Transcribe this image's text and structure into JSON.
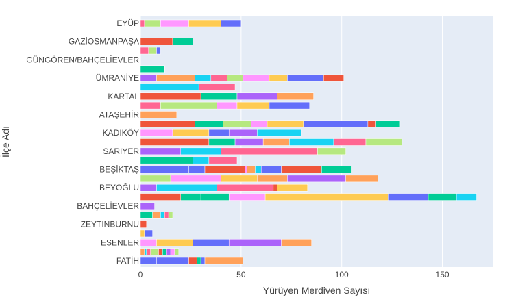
{
  "chart_data": {
    "type": "bar",
    "orientation": "horizontal",
    "barmode": "stack",
    "xlabel": "Yürüyen Merdiven Sayısı",
    "ylabel": "İlçe Adı",
    "xlim": [
      0,
      175
    ],
    "xticks": [
      0,
      50,
      100,
      150
    ],
    "grid": true,
    "background": "#E5ECF6",
    "y_tick_labels": [
      "EYÜP",
      "GAZİOSMANPAŞA",
      "GÜNGÖREN/BAHÇELİEVLER",
      "ÜMRANİYE",
      "KARTAL",
      "ATAŞEHİR",
      "KADIKÖY",
      "SARIYER",
      "BEŞİKTAŞ",
      "BEYOĞLU",
      "BAHÇELİEVLER",
      "ZEYTİNBURNU",
      "ESENLER",
      "FATİH"
    ],
    "palette": [
      "#636EFA",
      "#EF553B",
      "#00CC96",
      "#AB63FA",
      "#FFA15A",
      "#19D3F3",
      "#FF6692",
      "#B6E880",
      "#FF97FF",
      "#FECB52"
    ],
    "rows": [
      {
        "label": "EYÜP",
        "segments": [
          {
            "value": 2,
            "color": "#FF6692"
          },
          {
            "value": 8,
            "color": "#B6E880"
          },
          {
            "value": 14,
            "color": "#FF97FF"
          },
          {
            "value": 16,
            "color": "#FECB52"
          },
          {
            "value": 10,
            "color": "#636EFA"
          }
        ]
      },
      {
        "label": "",
        "segments": []
      },
      {
        "label": "GAZİOSMANPAŞA",
        "segments": [
          {
            "value": 16,
            "color": "#EF553B"
          },
          {
            "value": 10,
            "color": "#00CC96"
          }
        ]
      },
      {
        "label": "",
        "segments": [
          {
            "value": 4,
            "color": "#FF6692"
          },
          {
            "value": 4,
            "color": "#B6E880"
          },
          {
            "value": 2,
            "color": "#636EFA"
          }
        ]
      },
      {
        "label": "GÜNGÖREN/BAHÇELİEVLER",
        "segments": []
      },
      {
        "label": "",
        "segments": [
          {
            "value": 12,
            "color": "#00CC96"
          }
        ]
      },
      {
        "label": "ÜMRANİYE",
        "segments": [
          {
            "value": 8,
            "color": "#AB63FA"
          },
          {
            "value": 19,
            "color": "#FFA15A"
          },
          {
            "value": 8,
            "color": "#19D3F3"
          },
          {
            "value": 8,
            "color": "#FF6692"
          },
          {
            "value": 8,
            "color": "#B6E880"
          },
          {
            "value": 13,
            "color": "#FF97FF"
          },
          {
            "value": 9,
            "color": "#FECB52"
          },
          {
            "value": 18,
            "color": "#636EFA"
          },
          {
            "value": 10,
            "color": "#EF553B"
          }
        ]
      },
      {
        "label": "",
        "segments": [
          {
            "value": 29,
            "color": "#19D3F3"
          },
          {
            "value": 18,
            "color": "#FF6692"
          }
        ]
      },
      {
        "label": "KARTAL",
        "segments": [
          {
            "value": 30,
            "color": "#EF553B"
          },
          {
            "value": 18,
            "color": "#00CC96"
          },
          {
            "value": 20,
            "color": "#AB63FA"
          },
          {
            "value": 18,
            "color": "#FFA15A"
          }
        ]
      },
      {
        "label": "",
        "segments": [
          {
            "value": 10,
            "color": "#FF6692"
          },
          {
            "value": 28,
            "color": "#B6E880"
          },
          {
            "value": 10,
            "color": "#FF97FF"
          },
          {
            "value": 16,
            "color": "#FECB52"
          },
          {
            "value": 20,
            "color": "#636EFA"
          }
        ]
      },
      {
        "label": "ATAŞEHİR",
        "segments": [
          {
            "value": 18,
            "color": "#FFA15A"
          }
        ]
      },
      {
        "label": "",
        "segments": [
          {
            "value": 27,
            "color": "#EF553B"
          },
          {
            "value": 14,
            "color": "#00CC96"
          },
          {
            "value": 14,
            "color": "#B6E880"
          },
          {
            "value": 8,
            "color": "#FF97FF"
          },
          {
            "value": 18,
            "color": "#FECB52"
          },
          {
            "value": 32,
            "color": "#636EFA"
          },
          {
            "value": 4,
            "color": "#EF553B"
          },
          {
            "value": 12,
            "color": "#00CC96"
          }
        ]
      },
      {
        "label": "KADIKÖY",
        "segments": [
          {
            "value": 16,
            "color": "#FF97FF"
          },
          {
            "value": 18,
            "color": "#FECB52"
          },
          {
            "value": 10,
            "color": "#636EFA"
          },
          {
            "value": 14,
            "color": "#AB63FA"
          },
          {
            "value": 22,
            "color": "#19D3F3"
          }
        ]
      },
      {
        "label": "",
        "segments": [
          {
            "value": 34,
            "color": "#EF553B"
          },
          {
            "value": 13,
            "color": "#00CC96"
          },
          {
            "value": 14,
            "color": "#AB63FA"
          },
          {
            "value": 13,
            "color": "#FFA15A"
          },
          {
            "value": 22,
            "color": "#19D3F3"
          },
          {
            "value": 16,
            "color": "#FF6692"
          },
          {
            "value": 18,
            "color": "#B6E880"
          }
        ]
      },
      {
        "label": "SARIYER",
        "segments": [
          {
            "value": 20,
            "color": "#AB63FA"
          },
          {
            "value": 20,
            "color": "#19D3F3"
          },
          {
            "value": 48,
            "color": "#FF6692"
          },
          {
            "value": 14,
            "color": "#B6E880"
          }
        ]
      },
      {
        "label": "",
        "segments": [
          {
            "value": 26,
            "color": "#00CC96"
          },
          {
            "value": 8,
            "color": "#19D3F3"
          },
          {
            "value": 14,
            "color": "#FF6692"
          }
        ]
      },
      {
        "label": "BEŞİKTAŞ",
        "segments": [
          {
            "value": 24,
            "color": "#636EFA"
          },
          {
            "value": 8,
            "color": "#636EFA"
          },
          {
            "value": 20,
            "color": "#EF553B"
          },
          {
            "value": 1,
            "color": "#FF97FF"
          },
          {
            "value": 4,
            "color": "#FFA15A"
          },
          {
            "value": 3,
            "color": "#19D3F3"
          },
          {
            "value": 10,
            "color": "#636EFA"
          },
          {
            "value": 20,
            "color": "#EF553B"
          },
          {
            "value": 15,
            "color": "#00CC96"
          }
        ]
      },
      {
        "label": "",
        "segments": [
          {
            "value": 15,
            "color": "#B6E880"
          },
          {
            "value": 25,
            "color": "#FF97FF"
          },
          {
            "value": 18,
            "color": "#FECB52"
          },
          {
            "value": 15,
            "color": "#FFA15A"
          },
          {
            "value": 29,
            "color": "#AB63FA"
          },
          {
            "value": 16,
            "color": "#FFA15A"
          }
        ]
      },
      {
        "label": "BEYOĞLU",
        "segments": [
          {
            "value": 8,
            "color": "#AB63FA"
          },
          {
            "value": 30,
            "color": "#19D3F3"
          },
          {
            "value": 28,
            "color": "#FF6692"
          },
          {
            "value": 2,
            "color": "#EF553B"
          },
          {
            "value": 15,
            "color": "#FECB52"
          }
        ]
      },
      {
        "label": "",
        "segments": [
          {
            "value": 20,
            "color": "#EF553B"
          },
          {
            "value": 10,
            "color": "#00CC96"
          },
          {
            "value": 14,
            "color": "#00CC96"
          },
          {
            "value": 18,
            "color": "#FF97FF"
          },
          {
            "value": 61,
            "color": "#FECB52"
          },
          {
            "value": 20,
            "color": "#636EFA"
          },
          {
            "value": 14,
            "color": "#00CC96"
          },
          {
            "value": 10,
            "color": "#19D3F3"
          }
        ]
      },
      {
        "label": "BAHÇELİEVLER",
        "segments": [
          {
            "value": 7,
            "color": "#AB63FA"
          }
        ]
      },
      {
        "label": "",
        "segments": [
          {
            "value": 6,
            "color": "#00CC96"
          },
          {
            "value": 4,
            "color": "#FFA15A"
          },
          {
            "value": 2,
            "color": "#19D3F3"
          },
          {
            "value": 2,
            "color": "#FF6692"
          },
          {
            "value": 2,
            "color": "#B6E880"
          }
        ]
      },
      {
        "label": "ZEYTİNBURNU",
        "segments": [
          {
            "value": 3,
            "color": "#EF553B"
          }
        ]
      },
      {
        "label": "",
        "segments": [
          {
            "value": 2,
            "color": "#FECB52"
          },
          {
            "value": 4,
            "color": "#636EFA"
          }
        ]
      },
      {
        "label": "ESENLER",
        "segments": [
          {
            "value": 8,
            "color": "#FF97FF"
          },
          {
            "value": 18,
            "color": "#FECB52"
          },
          {
            "value": 18,
            "color": "#636EFA"
          },
          {
            "value": 26,
            "color": "#AB63FA"
          },
          {
            "value": 15,
            "color": "#FFA15A"
          }
        ]
      },
      {
        "label": "",
        "segments": [
          {
            "value": 2,
            "color": "#FFA15A"
          },
          {
            "value": 1,
            "color": "#19D3F3"
          },
          {
            "value": 2,
            "color": "#FF6692"
          },
          {
            "value": 4,
            "color": "#B6E880"
          },
          {
            "value": 2,
            "color": "#EF553B"
          },
          {
            "value": 2,
            "color": "#00CC96"
          },
          {
            "value": 2,
            "color": "#AB63FA"
          },
          {
            "value": 2,
            "color": "#FF97FF"
          },
          {
            "value": 2,
            "color": "#B6E880"
          }
        ]
      },
      {
        "label": "FATİH",
        "segments": [
          {
            "value": 8,
            "color": "#636EFA"
          },
          {
            "value": 16,
            "color": "#636EFA"
          },
          {
            "value": 4,
            "color": "#EF553B"
          },
          {
            "value": 2,
            "color": "#00CC96"
          },
          {
            "value": 2,
            "color": "#636EFA"
          },
          {
            "value": 19,
            "color": "#FFA15A"
          }
        ]
      }
    ]
  }
}
